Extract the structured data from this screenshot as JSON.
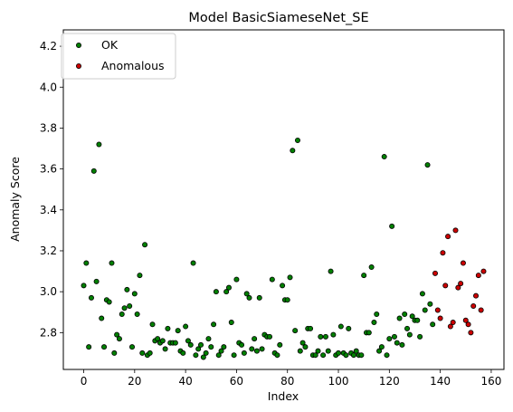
{
  "chart_data": {
    "type": "scatter",
    "title": "Model BasicSiameseNet_SE",
    "xlabel": "Index",
    "ylabel": "Anomaly Score",
    "xlim": [
      -8,
      165
    ],
    "ylim": [
      2.62,
      4.28
    ],
    "xticks": [
      0,
      20,
      40,
      60,
      80,
      100,
      120,
      140,
      160
    ],
    "yticks": [
      2.8,
      3.0,
      3.2,
      3.4,
      3.6,
      3.8,
      4.0,
      4.2
    ],
    "xtick_labels": [
      "0",
      "20",
      "40",
      "60",
      "80",
      "100",
      "120",
      "140",
      "160"
    ],
    "ytick_labels": [
      "2.8",
      "3.0",
      "3.2",
      "3.4",
      "3.6",
      "3.8",
      "4.0",
      "4.2"
    ],
    "grid": false,
    "legend_position": "top-left",
    "series": [
      {
        "name": "OK",
        "color": "#008000",
        "edge_color": "#000000",
        "points": [
          [
            0,
            3.03
          ],
          [
            1,
            3.14
          ],
          [
            2,
            2.73
          ],
          [
            3,
            2.97
          ],
          [
            4,
            3.59
          ],
          [
            5,
            3.05
          ],
          [
            6,
            3.72
          ],
          [
            7,
            2.87
          ],
          [
            8,
            2.73
          ],
          [
            9,
            2.96
          ],
          [
            10,
            2.95
          ],
          [
            11,
            3.14
          ],
          [
            12,
            2.7
          ],
          [
            13,
            2.79
          ],
          [
            14,
            2.77
          ],
          [
            15,
            2.89
          ],
          [
            16,
            2.92
          ],
          [
            17,
            3.01
          ],
          [
            18,
            2.93
          ],
          [
            19,
            2.73
          ],
          [
            20,
            2.99
          ],
          [
            21,
            2.89
          ],
          [
            22,
            3.08
          ],
          [
            23,
            2.7
          ],
          [
            24,
            3.23
          ],
          [
            25,
            2.69
          ],
          [
            26,
            2.7
          ],
          [
            27,
            2.84
          ],
          [
            28,
            2.76
          ],
          [
            29,
            2.77
          ],
          [
            30,
            2.75
          ],
          [
            31,
            2.76
          ],
          [
            32,
            2.72
          ],
          [
            33,
            2.82
          ],
          [
            34,
            2.75
          ],
          [
            35,
            2.75
          ],
          [
            36,
            2.75
          ],
          [
            37,
            2.81
          ],
          [
            38,
            2.71
          ],
          [
            39,
            2.7
          ],
          [
            40,
            2.83
          ],
          [
            41,
            2.76
          ],
          [
            42,
            2.74
          ],
          [
            43,
            3.14
          ],
          [
            44,
            2.69
          ],
          [
            45,
            2.72
          ],
          [
            46,
            2.74
          ],
          [
            47,
            2.68
          ],
          [
            48,
            2.7
          ],
          [
            49,
            2.77
          ],
          [
            50,
            2.73
          ],
          [
            51,
            2.84
          ],
          [
            52,
            3.0
          ],
          [
            53,
            2.69
          ],
          [
            54,
            2.71
          ],
          [
            55,
            2.73
          ],
          [
            56,
            3.0
          ],
          [
            57,
            3.02
          ],
          [
            58,
            2.85
          ],
          [
            59,
            2.69
          ],
          [
            60,
            3.06
          ],
          [
            61,
            2.75
          ],
          [
            62,
            2.74
          ],
          [
            63,
            2.7
          ],
          [
            64,
            2.99
          ],
          [
            65,
            2.97
          ],
          [
            66,
            2.72
          ],
          [
            67,
            2.77
          ],
          [
            68,
            2.71
          ],
          [
            69,
            2.97
          ],
          [
            70,
            2.72
          ],
          [
            71,
            2.79
          ],
          [
            72,
            2.78
          ],
          [
            73,
            2.78
          ],
          [
            74,
            3.06
          ],
          [
            75,
            2.7
          ],
          [
            76,
            2.69
          ],
          [
            77,
            2.74
          ],
          [
            78,
            3.03
          ],
          [
            79,
            2.96
          ],
          [
            80,
            2.96
          ],
          [
            81,
            3.07
          ],
          [
            82,
            3.69
          ],
          [
            83,
            2.81
          ],
          [
            84,
            3.74
          ],
          [
            85,
            2.71
          ],
          [
            86,
            2.75
          ],
          [
            87,
            2.73
          ],
          [
            88,
            2.82
          ],
          [
            89,
            2.82
          ],
          [
            90,
            2.69
          ],
          [
            91,
            2.69
          ],
          [
            92,
            2.71
          ],
          [
            93,
            2.78
          ],
          [
            94,
            2.69
          ],
          [
            95,
            2.78
          ],
          [
            96,
            2.71
          ],
          [
            97,
            3.1
          ],
          [
            98,
            2.79
          ],
          [
            99,
            2.69
          ],
          [
            100,
            2.7
          ],
          [
            101,
            2.83
          ],
          [
            102,
            2.7
          ],
          [
            103,
            2.69
          ],
          [
            104,
            2.82
          ],
          [
            105,
            2.7
          ],
          [
            106,
            2.69
          ],
          [
            107,
            2.71
          ],
          [
            108,
            2.69
          ],
          [
            109,
            2.69
          ],
          [
            110,
            3.08
          ],
          [
            111,
            2.8
          ],
          [
            112,
            2.8
          ],
          [
            113,
            3.12
          ],
          [
            114,
            2.85
          ],
          [
            115,
            2.89
          ],
          [
            116,
            2.71
          ],
          [
            117,
            2.73
          ],
          [
            118,
            3.66
          ],
          [
            119,
            2.69
          ],
          [
            120,
            2.77
          ],
          [
            121,
            3.32
          ],
          [
            122,
            2.78
          ],
          [
            123,
            2.75
          ],
          [
            124,
            2.87
          ],
          [
            125,
            2.74
          ],
          [
            126,
            2.89
          ],
          [
            127,
            2.82
          ],
          [
            128,
            2.79
          ],
          [
            129,
            2.88
          ],
          [
            130,
            2.86
          ],
          [
            131,
            2.86
          ],
          [
            132,
            2.78
          ],
          [
            133,
            2.99
          ],
          [
            134,
            2.91
          ],
          [
            135,
            3.62
          ],
          [
            136,
            2.94
          ],
          [
            137,
            2.84
          ]
        ]
      },
      {
        "name": "Anomalous",
        "color": "#cc0000",
        "edge_color": "#000000",
        "points": [
          [
            138,
            3.09
          ],
          [
            139,
            2.91
          ],
          [
            140,
            2.87
          ],
          [
            141,
            3.19
          ],
          [
            142,
            3.03
          ],
          [
            143,
            3.27
          ],
          [
            144,
            2.83
          ],
          [
            145,
            2.85
          ],
          [
            146,
            3.3
          ],
          [
            147,
            3.02
          ],
          [
            148,
            3.04
          ],
          [
            149,
            3.14
          ],
          [
            150,
            2.86
          ],
          [
            151,
            2.84
          ],
          [
            152,
            2.8
          ],
          [
            153,
            2.93
          ],
          [
            154,
            2.98
          ],
          [
            155,
            3.08
          ],
          [
            156,
            2.91
          ],
          [
            157,
            3.1
          ]
        ]
      }
    ]
  }
}
